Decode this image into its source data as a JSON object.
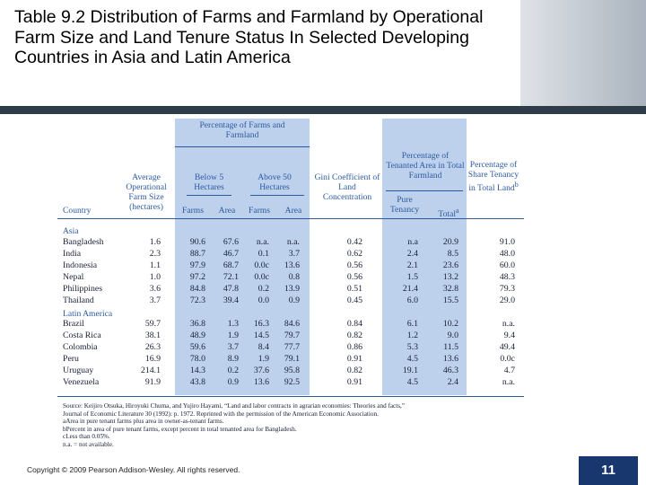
{
  "slide": {
    "title": "Table 9.2 Distribution of Farms and Farmland by Operational Farm Size and Land Tenure Status In Selected Developing Countries in Asia and Latin America",
    "copyright": "Copyright © 2009 Pearson Addison-Wesley. All rights reserved.",
    "page_number": "11"
  },
  "table": {
    "group_header": "Percentage of Farms and Farmland",
    "headers": {
      "country": "Country",
      "avg_size": "Average Operational Farm Size (hectares)",
      "below5": "Below 5 Hectares",
      "above50": "Above 50 Hectares",
      "gini": "Gini Coefficient of Land Concentration",
      "tenanted": "Percentage of Tenanted Area in Total Farmland",
      "share_tenancy": "Percentage of Share Tenancy in Total Land",
      "share_tenancy_sup": "b"
    },
    "subheaders": {
      "farms1": "Farms",
      "area1": "Area",
      "farms2": "Farms",
      "area2": "Area",
      "pure": "Pure Tenancy",
      "total": "Total",
      "total_sup": "a"
    },
    "regions": {
      "asia": "Asia",
      "latin": "Latin America"
    },
    "asia_rows": [
      [
        "Bangladesh",
        "1.6",
        "90.6",
        "67.6",
        "n.a.",
        "n.a.",
        "0.42",
        "n.a",
        "20.9",
        "91.0"
      ],
      [
        "India",
        "2.3",
        "88.7",
        "46.7",
        "0.1",
        "3.7",
        "0.62",
        "2.4",
        "8.5",
        "48.0"
      ],
      [
        "Indonesia",
        "1.1",
        "97.9",
        "68.7",
        "0.0c",
        "13.6",
        "0.56",
        "2.1",
        "23.6",
        "60.0"
      ],
      [
        "Nepal",
        "1.0",
        "97.2",
        "72.1",
        "0.0c",
        "0.8",
        "0.56",
        "1.5",
        "13.2",
        "48.3"
      ],
      [
        "Philippines",
        "3.6",
        "84.8",
        "47.8",
        "0.2",
        "13.9",
        "0.51",
        "21.4",
        "32.8",
        "79.3"
      ],
      [
        "Thailand",
        "3.7",
        "72.3",
        "39.4",
        "0.0",
        "0.9",
        "0.45",
        "6.0",
        "15.5",
        "29.0"
      ]
    ],
    "latin_rows": [
      [
        "Brazil",
        "59.7",
        "36.8",
        "1.3",
        "16.3",
        "84.6",
        "0.84",
        "6.1",
        "10.2",
        "n.a."
      ],
      [
        "Costa Rica",
        "38.1",
        "48.9",
        "1.9",
        "14.5",
        "79.7",
        "0.82",
        "1.2",
        "9.0",
        "9.4"
      ],
      [
        "Colombia",
        "26.3",
        "59.6",
        "3.7",
        "8.4",
        "77.7",
        "0.86",
        "5.3",
        "11.5",
        "49.4"
      ],
      [
        "Peru",
        "16.9",
        "78.0",
        "8.9",
        "1.9",
        "79.1",
        "0.91",
        "4.5",
        "13.6",
        "0.0c"
      ],
      [
        "Uruguay",
        "214.1",
        "14.3",
        "0.2",
        "37.6",
        "95.8",
        "0.82",
        "19.1",
        "46.3",
        "4.7"
      ],
      [
        "Venezuela",
        "91.9",
        "43.8",
        "0.9",
        "13.6",
        "92.5",
        "0.91",
        "4.5",
        "2.4",
        "n.a."
      ]
    ],
    "notes": [
      "Source: Keijiro Otsuka, Hiroyuki Chuma, and Yujiro Hayami, “Land and labor contracts in agrarian economies: Theories and facts,”",
      "Journal of Economic Literature 30 (1992): p. 1972. Reprinted with the permission of the American Economic Association.",
      "aArea in pure tenant farms plus area in owner-as-tenant farms.",
      "bPercent in area of pure tenant farms, except percent in total tenanted area for Bangladesh.",
      "cLess than 0.05%.",
      "n.a. = not available."
    ]
  },
  "colors": {
    "shade": "#bdd1ec",
    "header_text": "#2c5aa0",
    "page_box": "#17376e",
    "dark_band": "#2e3c4a"
  }
}
